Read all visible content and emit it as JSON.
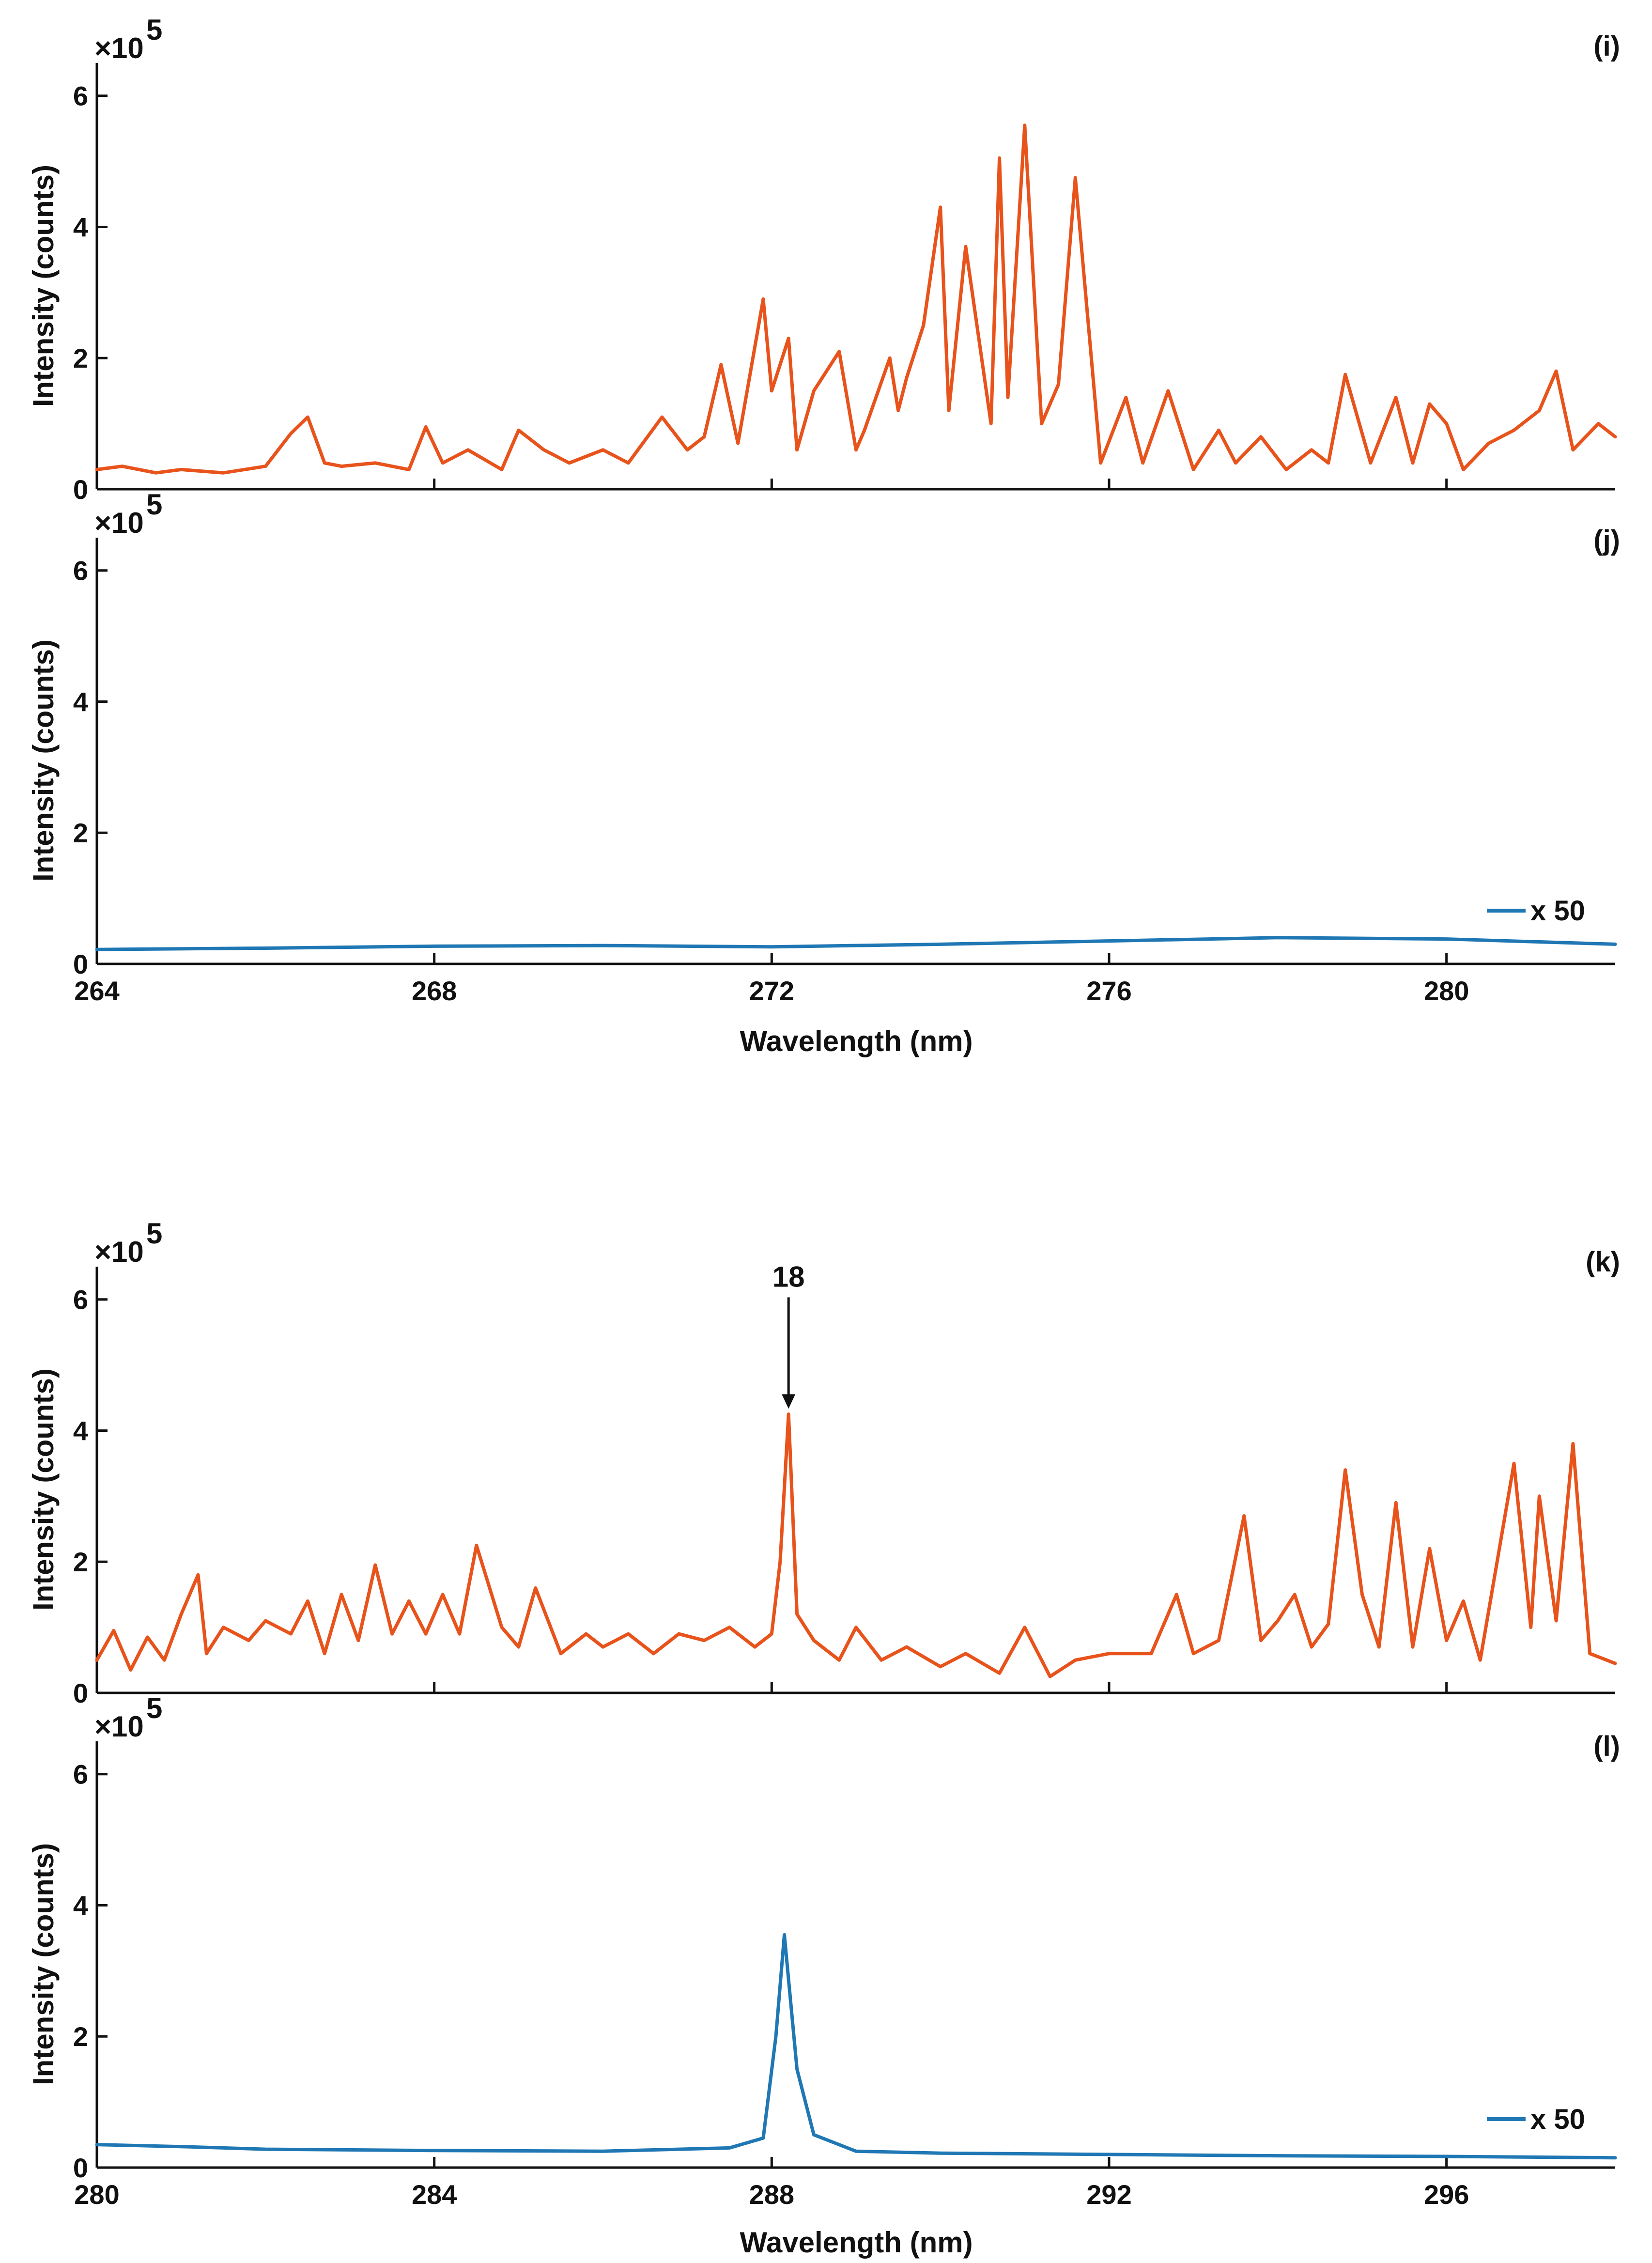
{
  "chart_data": [
    {
      "type": "line",
      "panel": "(i)",
      "xlim": [
        264,
        282
      ],
      "ylim": [
        0,
        650000
      ],
      "xticks": [
        264,
        268,
        272,
        276,
        280
      ],
      "yticks": [
        0,
        2,
        4,
        6
      ],
      "exponent_label": "×10",
      "exponent_power": "5",
      "ylabel": "Intensity (counts)",
      "xlabel": "",
      "series": [
        {
          "name": "panel i spectrum",
          "color": "#e8531c",
          "x": [
            264.0,
            264.3,
            264.7,
            265.0,
            265.5,
            266.0,
            266.3,
            266.5,
            266.7,
            266.9,
            267.3,
            267.7,
            267.9,
            268.1,
            268.4,
            268.8,
            269.0,
            269.3,
            269.6,
            270.0,
            270.3,
            270.7,
            271.0,
            271.2,
            271.4,
            271.6,
            271.9,
            272.0,
            272.2,
            272.3,
            272.5,
            272.8,
            273.0,
            273.1,
            273.4,
            273.5,
            273.6,
            273.8,
            274.0,
            274.1,
            274.3,
            274.6,
            274.7,
            274.8,
            275.0,
            275.2,
            275.4,
            275.6,
            275.9,
            276.2,
            276.4,
            276.7,
            277.0,
            277.3,
            277.5,
            277.8,
            278.1,
            278.4,
            278.6,
            278.8,
            279.1,
            279.4,
            279.6,
            279.8,
            280.0,
            280.2,
            280.5,
            280.8,
            281.1,
            281.3,
            281.5,
            281.8,
            282.0
          ],
          "y": [
            30000,
            35000,
            25000,
            30000,
            25000,
            35000,
            85000,
            110000,
            40000,
            35000,
            40000,
            30000,
            95000,
            40000,
            60000,
            30000,
            90000,
            60000,
            40000,
            60000,
            40000,
            110000,
            60000,
            80000,
            190000,
            70000,
            290000,
            150000,
            230000,
            60000,
            150000,
            210000,
            60000,
            90000,
            200000,
            120000,
            170000,
            250000,
            430000,
            120000,
            370000,
            100000,
            505000,
            140000,
            555000,
            100000,
            160000,
            475000,
            40000,
            140000,
            40000,
            150000,
            30000,
            90000,
            40000,
            80000,
            30000,
            60000,
            40000,
            175000,
            40000,
            140000,
            40000,
            130000,
            100000,
            30000,
            70000,
            90000,
            120000,
            180000,
            60000,
            100000,
            80000
          ]
        }
      ]
    },
    {
      "type": "line",
      "panel": "(j)",
      "xlim": [
        264,
        282
      ],
      "ylim": [
        0,
        650000
      ],
      "xticks": [
        264,
        268,
        272,
        276,
        280
      ],
      "yticks": [
        0,
        2,
        4,
        6
      ],
      "exponent_label": "×10",
      "exponent_power": "5",
      "ylabel": "Intensity (counts)",
      "xlabel": "Wavelength (nm)",
      "legend": "x 50",
      "series": [
        {
          "name": "x 50",
          "color": "#1f77b4",
          "x": [
            264.0,
            266.0,
            268.0,
            270.0,
            272.0,
            274.0,
            276.0,
            278.0,
            280.0,
            282.0
          ],
          "y": [
            22000,
            24000,
            27000,
            28000,
            26000,
            30000,
            35000,
            40000,
            38000,
            30000
          ]
        }
      ]
    },
    {
      "type": "line",
      "panel": "(k)",
      "xlim": [
        280,
        298
      ],
      "ylim": [
        0,
        650000
      ],
      "xticks": [
        280,
        284,
        288,
        292,
        296
      ],
      "yticks": [
        0,
        2,
        4,
        6
      ],
      "exponent_label": "×10",
      "exponent_power": "5",
      "ylabel": "Intensity (counts)",
      "xlabel": "",
      "annotation": {
        "text": "18",
        "x": 288.2,
        "y": 420000
      },
      "series": [
        {
          "name": "panel k spectrum",
          "color": "#e8531c",
          "x": [
            280.0,
            280.2,
            280.4,
            280.6,
            280.8,
            281.0,
            281.2,
            281.3,
            281.5,
            281.8,
            282.0,
            282.3,
            282.5,
            282.7,
            282.9,
            283.1,
            283.3,
            283.5,
            283.7,
            283.9,
            284.1,
            284.3,
            284.5,
            284.8,
            285.0,
            285.2,
            285.5,
            285.8,
            286.0,
            286.3,
            286.6,
            286.9,
            287.2,
            287.5,
            287.8,
            288.0,
            288.1,
            288.2,
            288.3,
            288.5,
            288.8,
            289.0,
            289.3,
            289.6,
            290.0,
            290.3,
            290.7,
            291.0,
            291.3,
            291.6,
            292.0,
            292.5,
            292.8,
            293.0,
            293.3,
            293.6,
            293.8,
            294.0,
            294.2,
            294.4,
            294.6,
            294.8,
            295.0,
            295.2,
            295.4,
            295.6,
            295.8,
            296.0,
            296.2,
            296.4,
            296.6,
            296.8,
            297.0,
            297.1,
            297.3,
            297.5,
            297.7,
            298.0
          ],
          "y": [
            50000,
            95000,
            35000,
            85000,
            50000,
            120000,
            180000,
            60000,
            100000,
            80000,
            110000,
            90000,
            140000,
            60000,
            150000,
            80000,
            195000,
            90000,
            140000,
            90000,
            150000,
            90000,
            225000,
            100000,
            70000,
            160000,
            60000,
            90000,
            70000,
            90000,
            60000,
            90000,
            80000,
            100000,
            70000,
            90000,
            200000,
            425000,
            120000,
            80000,
            50000,
            100000,
            50000,
            70000,
            40000,
            60000,
            30000,
            100000,
            25000,
            50000,
            60000,
            60000,
            150000,
            60000,
            80000,
            270000,
            80000,
            110000,
            150000,
            70000,
            105000,
            340000,
            150000,
            70000,
            290000,
            70000,
            220000,
            80000,
            140000,
            50000,
            200000,
            350000,
            100000,
            300000,
            110000,
            380000,
            60000,
            45000
          ]
        }
      ]
    },
    {
      "type": "line",
      "panel": "(l)",
      "xlim": [
        280,
        298
      ],
      "ylim": [
        0,
        650000
      ],
      "xticks": [
        280,
        284,
        288,
        292,
        296
      ],
      "yticks": [
        0,
        2,
        4,
        6
      ],
      "exponent_label": "×10",
      "exponent_power": "5",
      "ylabel": "Intensity (counts)",
      "xlabel": "Wavelength (nm)",
      "legend": "x 50",
      "series": [
        {
          "name": "x 50",
          "color": "#1f77b4",
          "x": [
            280.0,
            281.0,
            282.0,
            284.0,
            286.0,
            287.5,
            287.9,
            288.05,
            288.15,
            288.3,
            288.5,
            289.0,
            290.0,
            292.0,
            294.0,
            296.0,
            298.0
          ],
          "y": [
            35000,
            32000,
            28000,
            26000,
            25000,
            30000,
            45000,
            200000,
            355000,
            150000,
            50000,
            25000,
            22000,
            20000,
            18000,
            17000,
            15000
          ]
        }
      ]
    }
  ],
  "panels_text": {
    "p0": {
      "label": "(i)",
      "y_title": "Intensity (counts)",
      "x_title": ""
    },
    "p1": {
      "label": "(j)",
      "y_title": "Intensity (counts)",
      "x_title": "Wavelength (nm)",
      "legend": "x 50"
    },
    "p2": {
      "label": "(k)",
      "y_title": "Intensity (counts)",
      "x_title": "",
      "annotation": "18"
    },
    "p3": {
      "label": "(l)",
      "y_title": "Intensity (counts)",
      "x_title": "Wavelength (nm)",
      "legend": "x 50"
    }
  }
}
